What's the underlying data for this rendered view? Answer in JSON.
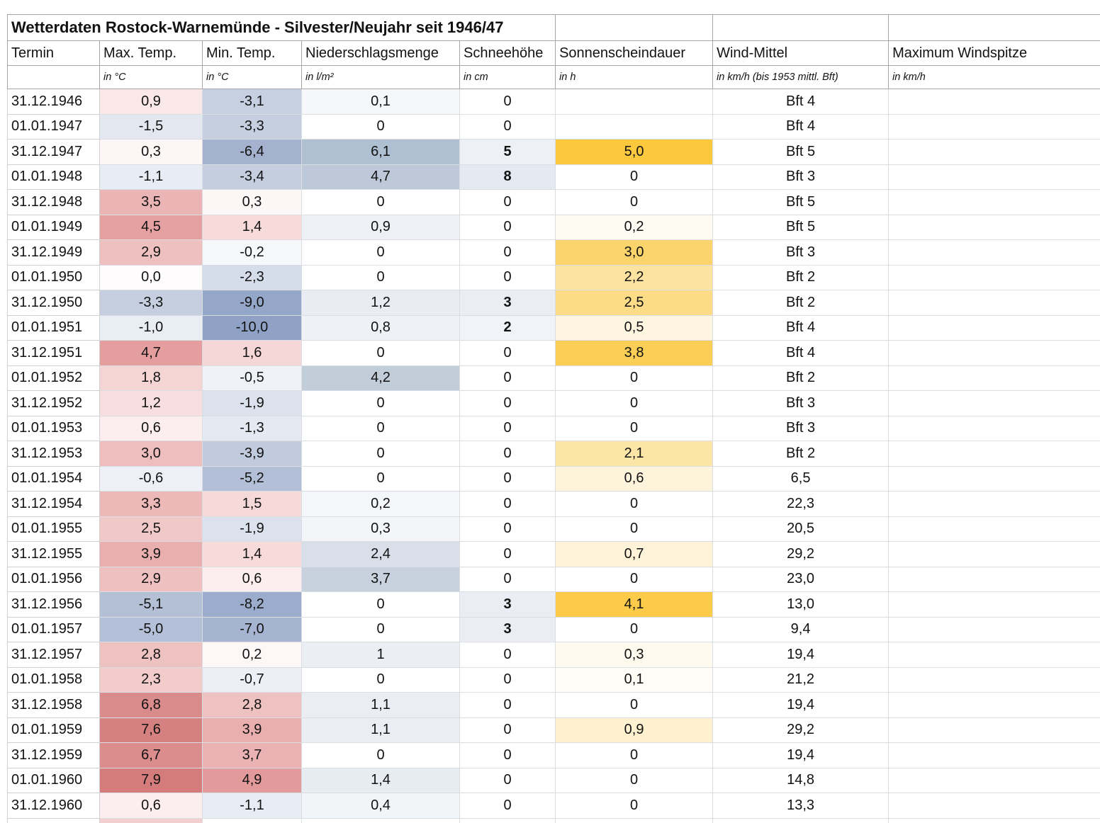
{
  "chart_data": {
    "type": "table",
    "title": "Wetterdaten Rostock-Warnemünde - Silvester/Neujahr seit 1946/47",
    "columns": [
      "Termin",
      "Max. Temp.",
      "Min. Temp.",
      "Niederschlagsmenge",
      "Schneehöhe",
      "Sonnenscheindauer",
      "Wind-Mittel",
      "Maximum Windspitze"
    ],
    "units": [
      "",
      "in °C",
      "in °C",
      "in l/m²",
      "in cm",
      "in h",
      "in km/h (bis 1953 mittl. Bft)",
      "in km/h"
    ],
    "legend_colors": {
      "warm_temperature": "#D47C7C",
      "cold_temperature": "#8FA2C6",
      "precipitation": "#AFC0D3",
      "sunshine": "#FCC83D"
    },
    "rows": [
      {
        "cells": [
          {
            "v": "31.12.1946"
          },
          {
            "v": "0,9",
            "bg": "#FAE7E7"
          },
          {
            "v": "-3,1",
            "bg": "#C6D0E0"
          },
          {
            "v": "0,1",
            "bg": "#F5F7FA"
          },
          {
            "v": "0"
          },
          {
            "v": ""
          },
          {
            "v": "Bft 4"
          },
          {
            "v": ""
          }
        ]
      },
      {
        "cells": [
          {
            "v": "01.01.1947"
          },
          {
            "v": "-1,5",
            "bg": "#E2E7F0"
          },
          {
            "v": "-3,3",
            "bg": "#C5CFE0"
          },
          {
            "v": "0"
          },
          {
            "v": "0"
          },
          {
            "v": ""
          },
          {
            "v": "Bft 4"
          },
          {
            "v": ""
          }
        ]
      },
      {
        "cells": [
          {
            "v": "31.12.1947"
          },
          {
            "v": "0,3",
            "bg": "#FDF6F6"
          },
          {
            "v": "-6,4",
            "bg": "#A4B2CF"
          },
          {
            "v": "6,1",
            "bg": "#AFC0D3"
          },
          {
            "v": "5",
            "bg": "#EDF1F6",
            "b": true
          },
          {
            "v": "5,0",
            "bg": "#FCC83D"
          },
          {
            "v": "Bft 5"
          },
          {
            "v": ""
          }
        ]
      },
      {
        "cells": [
          {
            "v": "01.01.1948"
          },
          {
            "v": "-1,1",
            "bg": "#E8ECF4"
          },
          {
            "v": "-3,4",
            "bg": "#C4CEDF"
          },
          {
            "v": "4,7",
            "bg": "#BDC9D8"
          },
          {
            "v": "8",
            "bg": "#E3EAF1",
            "b": true
          },
          {
            "v": "0"
          },
          {
            "v": "Bft 3"
          },
          {
            "v": ""
          }
        ]
      },
      {
        "cells": [
          {
            "v": "31.12.1948"
          },
          {
            "v": "3,5",
            "bg": "#EBB5B5"
          },
          {
            "v": "0,3",
            "bg": "#FDF6F6"
          },
          {
            "v": "0"
          },
          {
            "v": "0"
          },
          {
            "v": "0"
          },
          {
            "v": "Bft 5"
          },
          {
            "v": ""
          }
        ]
      },
      {
        "cells": [
          {
            "v": "01.01.1949"
          },
          {
            "v": "4,5",
            "bg": "#E5A1A1"
          },
          {
            "v": "1,4",
            "bg": "#F7DADA"
          },
          {
            "v": "0,9",
            "bg": "#EDF1F5"
          },
          {
            "v": "0"
          },
          {
            "v": "0,2",
            "bg": "#FEFBF2"
          },
          {
            "v": "Bft 5"
          },
          {
            "v": ""
          }
        ]
      },
      {
        "cells": [
          {
            "v": "31.12.1949"
          },
          {
            "v": "2,9",
            "bg": "#EEC0C0"
          },
          {
            "v": "-0,2",
            "bg": "#F6F8FB"
          },
          {
            "v": "0"
          },
          {
            "v": "0"
          },
          {
            "v": "3,0",
            "bg": "#FBD46C"
          },
          {
            "v": "Bft 3"
          },
          {
            "v": ""
          }
        ]
      },
      {
        "cells": [
          {
            "v": "01.01.1950"
          },
          {
            "v": "0,0",
            "bg": "#FEFCFC"
          },
          {
            "v": "-2,3",
            "bg": "#D5DCEA"
          },
          {
            "v": "0"
          },
          {
            "v": "0"
          },
          {
            "v": "2,2",
            "bg": "#FDE3A0"
          },
          {
            "v": "Bft 2"
          },
          {
            "v": ""
          }
        ]
      },
      {
        "cells": [
          {
            "v": "31.12.1950"
          },
          {
            "v": "-3,3",
            "bg": "#C5CFE0"
          },
          {
            "v": "-9,0",
            "bg": "#95A7C9"
          },
          {
            "v": "1,2",
            "bg": "#E9EDF3"
          },
          {
            "v": "3",
            "bg": "#EAEEF4",
            "b": true
          },
          {
            "v": "2,5",
            "bg": "#FCDC86"
          },
          {
            "v": "Bft 2"
          },
          {
            "v": ""
          }
        ]
      },
      {
        "cells": [
          {
            "v": "01.01.1951"
          },
          {
            "v": "-1,0",
            "bg": "#E9EDF4"
          },
          {
            "v": "-10,0",
            "bg": "#8FA2C6"
          },
          {
            "v": "0,8",
            "bg": "#EEF1F6"
          },
          {
            "v": "2",
            "bg": "#F0F3F7",
            "b": true
          },
          {
            "v": "0,5",
            "bg": "#FEF5E0"
          },
          {
            "v": "Bft 4"
          },
          {
            "v": ""
          }
        ]
      },
      {
        "cells": [
          {
            "v": "31.12.1951"
          },
          {
            "v": "4,7",
            "bg": "#E49E9E"
          },
          {
            "v": "1,6",
            "bg": "#F6D7D7"
          },
          {
            "v": "0"
          },
          {
            "v": "0"
          },
          {
            "v": "3,8",
            "bg": "#FBCE55"
          },
          {
            "v": "Bft 4"
          },
          {
            "v": ""
          }
        ]
      },
      {
        "cells": [
          {
            "v": "01.01.1952"
          },
          {
            "v": "1,8",
            "bg": "#F5D4D4"
          },
          {
            "v": "-0,5",
            "bg": "#EFF2F7"
          },
          {
            "v": "4,2",
            "bg": "#C2CDDA"
          },
          {
            "v": "0"
          },
          {
            "v": "0"
          },
          {
            "v": "Bft 2"
          },
          {
            "v": ""
          }
        ]
      },
      {
        "cells": [
          {
            "v": "31.12.1952"
          },
          {
            "v": "1,2",
            "bg": "#F8DEDE"
          },
          {
            "v": "-1,9",
            "bg": "#DCE2ED"
          },
          {
            "v": "0"
          },
          {
            "v": "0"
          },
          {
            "v": "0"
          },
          {
            "v": "Bft 3"
          },
          {
            "v": ""
          }
        ]
      },
      {
        "cells": [
          {
            "v": "01.01.1953"
          },
          {
            "v": "0,6",
            "bg": "#FCEEEE"
          },
          {
            "v": "-1,3",
            "bg": "#E5EAF2"
          },
          {
            "v": "0"
          },
          {
            "v": "0"
          },
          {
            "v": "0"
          },
          {
            "v": "Bft 3"
          },
          {
            "v": ""
          }
        ]
      },
      {
        "cells": [
          {
            "v": "31.12.1953"
          },
          {
            "v": "3,0",
            "bg": "#EEBEBE"
          },
          {
            "v": "-3,9",
            "bg": "#C0CBDD"
          },
          {
            "v": "0"
          },
          {
            "v": "0"
          },
          {
            "v": "2,1",
            "bg": "#FDE5A8"
          },
          {
            "v": "Bft 2"
          },
          {
            "v": ""
          }
        ]
      },
      {
        "cells": [
          {
            "v": "01.01.1954"
          },
          {
            "v": "-0,6",
            "bg": "#EDF0F6"
          },
          {
            "v": "-5,2",
            "bg": "#B2BFD6"
          },
          {
            "v": "0"
          },
          {
            "v": "0"
          },
          {
            "v": "0,6",
            "bg": "#FEF4DC"
          },
          {
            "v": "6,5"
          },
          {
            "v": ""
          }
        ]
      },
      {
        "cells": [
          {
            "v": "31.12.1954"
          },
          {
            "v": "3,3",
            "bg": "#ECB8B8"
          },
          {
            "v": "1,5",
            "bg": "#F6D9D9"
          },
          {
            "v": "0,2",
            "bg": "#F4F6F9"
          },
          {
            "v": "0"
          },
          {
            "v": "0"
          },
          {
            "v": "22,3"
          },
          {
            "v": ""
          }
        ]
      },
      {
        "cells": [
          {
            "v": "01.01.1955"
          },
          {
            "v": "2,5",
            "bg": "#F1C8C8"
          },
          {
            "v": "-1,9",
            "bg": "#DCE2ED"
          },
          {
            "v": "0,3",
            "bg": "#F3F5F9"
          },
          {
            "v": "0"
          },
          {
            "v": "0"
          },
          {
            "v": "20,5"
          },
          {
            "v": ""
          }
        ]
      },
      {
        "cells": [
          {
            "v": "31.12.1955"
          },
          {
            "v": "3,9",
            "bg": "#E9AFAF"
          },
          {
            "v": "1,4",
            "bg": "#F7DADA"
          },
          {
            "v": "2,4",
            "bg": "#D8DFE8"
          },
          {
            "v": "0"
          },
          {
            "v": "0,7",
            "bg": "#FEF3D8"
          },
          {
            "v": "29,2"
          },
          {
            "v": ""
          }
        ]
      },
      {
        "cells": [
          {
            "v": "01.01.1956"
          },
          {
            "v": "2,9",
            "bg": "#EEC0C0"
          },
          {
            "v": "0,6",
            "bg": "#FCEEEE"
          },
          {
            "v": "3,7",
            "bg": "#C7D2DE"
          },
          {
            "v": "0"
          },
          {
            "v": "0"
          },
          {
            "v": "23,0"
          },
          {
            "v": ""
          }
        ]
      },
      {
        "cells": [
          {
            "v": "31.12.1956"
          },
          {
            "v": "-5,1",
            "bg": "#B3C0D6"
          },
          {
            "v": "-8,2",
            "bg": "#9CACCC"
          },
          {
            "v": "0"
          },
          {
            "v": "3",
            "bg": "#EAEEF4",
            "b": true
          },
          {
            "v": "4,1",
            "bg": "#FBCB49"
          },
          {
            "v": "13,0"
          },
          {
            "v": ""
          }
        ]
      },
      {
        "cells": [
          {
            "v": "01.01.1957"
          },
          {
            "v": "-5,0",
            "bg": "#B4C0D7"
          },
          {
            "v": "-7,0",
            "bg": "#A6B4D1"
          },
          {
            "v": "0"
          },
          {
            "v": "3",
            "bg": "#EAEEF4",
            "b": true
          },
          {
            "v": "0"
          },
          {
            "v": "9,4"
          },
          {
            "v": ""
          }
        ]
      },
      {
        "cells": [
          {
            "v": "31.12.1957"
          },
          {
            "v": "2,8",
            "bg": "#EFC2C2"
          },
          {
            "v": "0,2",
            "bg": "#FDF7F7"
          },
          {
            "v": "1",
            "bg": "#EBEFF4"
          },
          {
            "v": "0"
          },
          {
            "v": "0,3",
            "bg": "#FEFAEE"
          },
          {
            "v": "19,4"
          },
          {
            "v": ""
          }
        ]
      },
      {
        "cells": [
          {
            "v": "01.01.1958"
          },
          {
            "v": "2,3",
            "bg": "#F2CBCB"
          },
          {
            "v": "-0,7",
            "bg": "#ECEFF6"
          },
          {
            "v": "0"
          },
          {
            "v": "0"
          },
          {
            "v": "0,1",
            "bg": "#FFFCF6"
          },
          {
            "v": "21,2"
          },
          {
            "v": ""
          }
        ]
      },
      {
        "cells": [
          {
            "v": "31.12.1958"
          },
          {
            "v": "6,8",
            "bg": "#DA8B8B"
          },
          {
            "v": "2,8",
            "bg": "#EFC2C2"
          },
          {
            "v": "1,1",
            "bg": "#EAEEF4"
          },
          {
            "v": "0"
          },
          {
            "v": "0"
          },
          {
            "v": "19,4"
          },
          {
            "v": ""
          }
        ]
      },
      {
        "cells": [
          {
            "v": "01.01.1959"
          },
          {
            "v": "7,6",
            "bg": "#D68181"
          },
          {
            "v": "3,9",
            "bg": "#E9AFAF"
          },
          {
            "v": "1,1",
            "bg": "#EAEEF4"
          },
          {
            "v": "0"
          },
          {
            "v": "0,9",
            "bg": "#FEF1D0"
          },
          {
            "v": "29,2"
          },
          {
            "v": ""
          }
        ]
      },
      {
        "cells": [
          {
            "v": "31.12.1959"
          },
          {
            "v": "6,7",
            "bg": "#DB8D8D"
          },
          {
            "v": "3,7",
            "bg": "#EAB2B2"
          },
          {
            "v": "0"
          },
          {
            "v": "0"
          },
          {
            "v": "0"
          },
          {
            "v": "19,4"
          },
          {
            "v": ""
          }
        ]
      },
      {
        "cells": [
          {
            "v": "01.01.1960"
          },
          {
            "v": "7,9",
            "bg": "#D47C7C"
          },
          {
            "v": "4,9",
            "bg": "#E29A9A"
          },
          {
            "v": "1,4",
            "bg": "#E7ECF2"
          },
          {
            "v": "0"
          },
          {
            "v": "0"
          },
          {
            "v": "14,8"
          },
          {
            "v": ""
          }
        ]
      },
      {
        "cells": [
          {
            "v": "31.12.1960"
          },
          {
            "v": "0,6",
            "bg": "#FCEEEE"
          },
          {
            "v": "-1,1",
            "bg": "#E8ECF4"
          },
          {
            "v": "0,4",
            "bg": "#F2F5F8"
          },
          {
            "v": "0"
          },
          {
            "v": "0"
          },
          {
            "v": "13,3"
          },
          {
            "v": ""
          }
        ]
      },
      {
        "partial": true,
        "cells": [
          {
            "v": ""
          },
          {
            "v": "",
            "bg": "#F3CFCF"
          },
          {
            "v": ""
          },
          {
            "v": ""
          },
          {
            "v": ""
          },
          {
            "v": ""
          },
          {
            "v": ""
          },
          {
            "v": ""
          }
        ]
      }
    ]
  }
}
